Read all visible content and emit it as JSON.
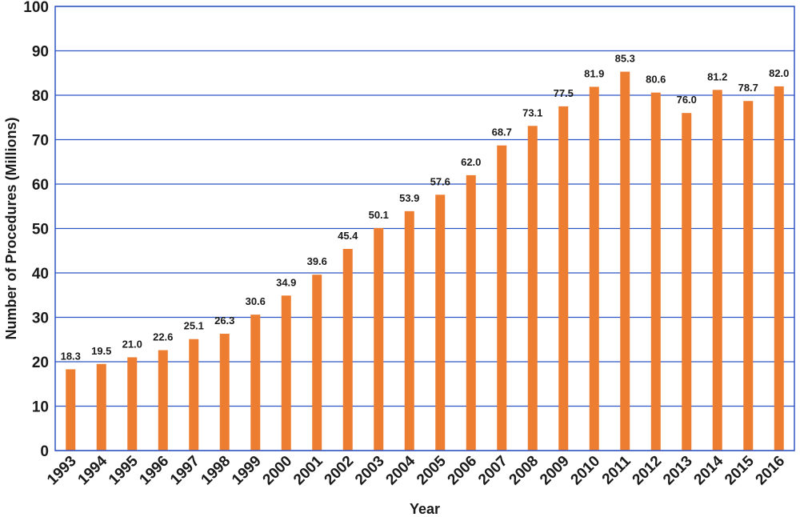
{
  "chart_data": {
    "type": "bar",
    "title": "",
    "xlabel": "Year",
    "ylabel": "Number of Procedures (Millions)",
    "ylim": [
      0,
      100
    ],
    "yticks": [
      0,
      10,
      20,
      30,
      40,
      50,
      60,
      70,
      80,
      90,
      100
    ],
    "grid": true,
    "legend": "none",
    "categories": [
      "1993",
      "1994",
      "1995",
      "1996",
      "1997",
      "1998",
      "1999",
      "2000",
      "2001",
      "2002",
      "2003",
      "2004",
      "2005",
      "2006",
      "2007",
      "2008",
      "2009",
      "2010",
      "2011",
      "2012",
      "2013",
      "2014",
      "2015",
      "2016"
    ],
    "values": [
      18.3,
      19.5,
      21.0,
      22.6,
      25.1,
      26.3,
      30.6,
      34.9,
      39.6,
      45.4,
      50.1,
      53.9,
      57.6,
      62.0,
      68.7,
      73.1,
      77.5,
      81.9,
      85.3,
      80.6,
      76.0,
      81.2,
      78.7,
      82.0
    ],
    "data_labels": [
      "18.3",
      "19.5",
      "21.0",
      "22.6",
      "25.1",
      "26.3",
      "30.6",
      "34.9",
      "39.6",
      "45.4",
      "50.1",
      "53.9",
      "57.6",
      "62.0",
      "68.7",
      "73.1",
      "77.5",
      "81.9",
      "85.3",
      "80.6",
      "76.0",
      "81.2",
      "78.7",
      "82.0"
    ],
    "colors": {
      "bar": "#ED7D31",
      "grid": "#2F55C2",
      "frame": "#2F55C2"
    }
  }
}
